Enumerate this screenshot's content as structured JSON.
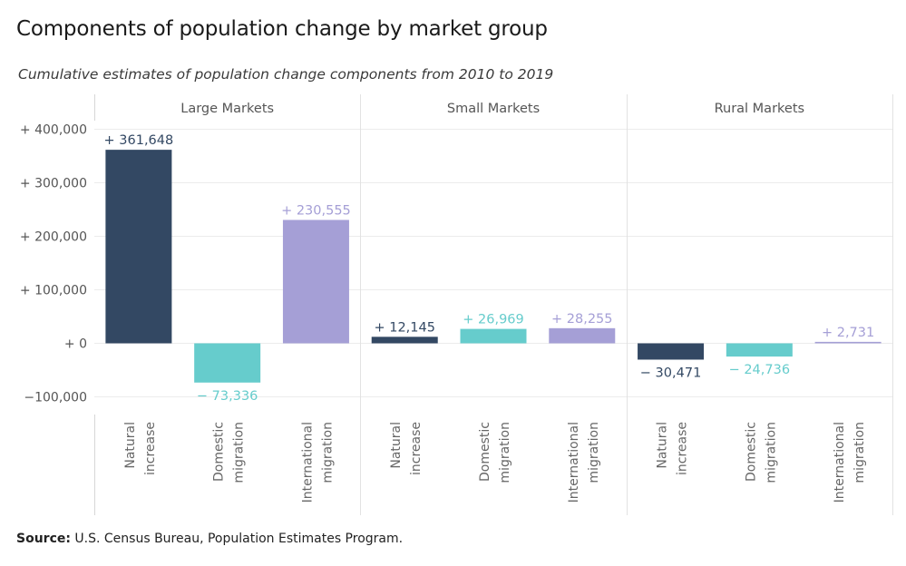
{
  "header": {
    "title": "Components of population change by market group",
    "subtitle": "Cumulative estimates of population change components from 2010 to 2019"
  },
  "footer": {
    "source_label": "Source:",
    "source_text": "U.S. Census Bureau, Population Estimates Program."
  },
  "colors": {
    "Natural increase": "#334863",
    "Domestic migration": "#66cccc",
    "International migration": "#a59fd6",
    "grid": "#ececec",
    "axis_text": "#555555"
  },
  "chart_data": {
    "type": "bar",
    "title": "Components of population change by market group",
    "subtitle": "Cumulative estimates of population change components from 2010 to 2019",
    "ylim": [
      -130000,
      430000
    ],
    "y_ticks": [
      -100000,
      0,
      100000,
      200000,
      300000,
      400000
    ],
    "y_tick_labels": [
      "−100,000",
      "+ 0",
      "+ 100,000",
      "+ 200,000",
      "+ 300,000",
      "+ 400,000"
    ],
    "grid": true,
    "categories": [
      {
        "key": "Natural increase",
        "lines": [
          "Natural",
          "increase"
        ]
      },
      {
        "key": "Domestic migration",
        "lines": [
          "Domestic",
          "migration"
        ]
      },
      {
        "key": "International migration",
        "lines": [
          "International",
          "migration"
        ]
      }
    ],
    "panels": [
      {
        "name": "Large Markets",
        "values": [
          361648,
          -73336,
          230555
        ],
        "labels": [
          "+ 361,648",
          "− 73,336",
          "+ 230,555"
        ]
      },
      {
        "name": "Small Markets",
        "values": [
          12145,
          26969,
          28255
        ],
        "labels": [
          "+ 12,145",
          "+ 26,969",
          "+ 28,255"
        ]
      },
      {
        "name": "Rural Markets",
        "values": [
          -30471,
          -24736,
          2731
        ],
        "labels": [
          "− 30,471",
          "− 24,736",
          "+ 2,731"
        ]
      }
    ]
  }
}
